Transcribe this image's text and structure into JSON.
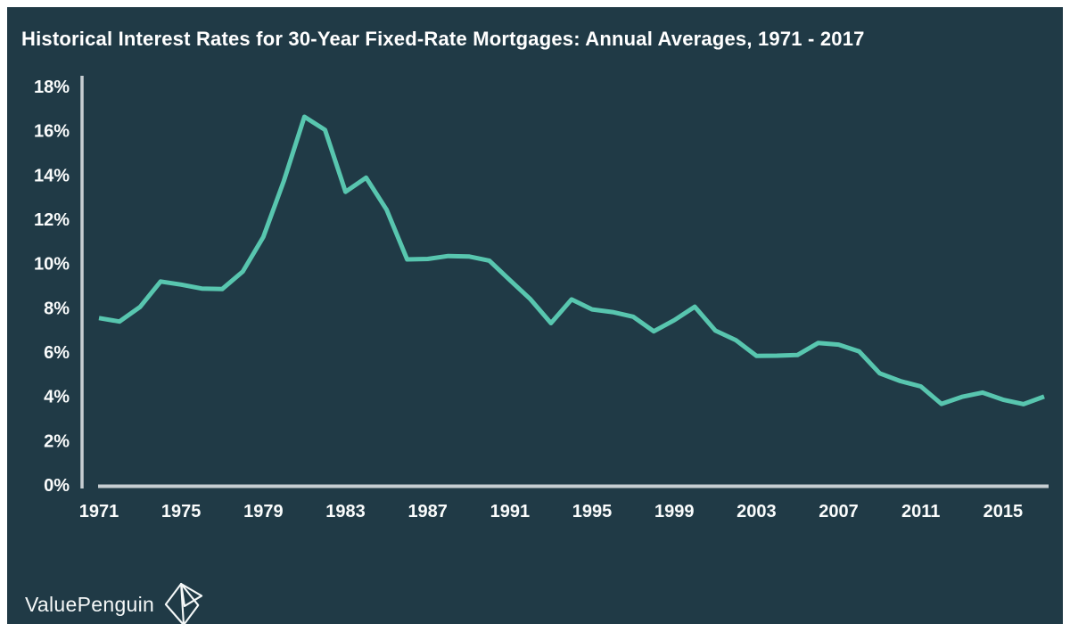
{
  "title": "Historical Interest Rates for 30-Year Fixed-Rate Mortgages: Annual Averages, 1971 - 2017",
  "branding": {
    "name": "ValuePenguin",
    "logo_icon": "origami-penguin-icon"
  },
  "colors": {
    "panel_background": "#203A46",
    "frame": "#FFFFFF",
    "line": "#58C6AF",
    "axis": "#C7CED2",
    "tick_text": "#FAFCFC",
    "title_text": "#FFFFFF"
  },
  "chart_data": {
    "type": "line",
    "title": "Historical Interest Rates for 30-Year Fixed-Rate Mortgages: Annual Averages, 1971 - 2017",
    "x": [
      1971,
      1972,
      1973,
      1974,
      1975,
      1976,
      1977,
      1978,
      1979,
      1980,
      1981,
      1982,
      1983,
      1984,
      1985,
      1986,
      1987,
      1988,
      1989,
      1990,
      1991,
      1992,
      1993,
      1994,
      1995,
      1996,
      1997,
      1998,
      1999,
      2000,
      2001,
      2002,
      2003,
      2004,
      2005,
      2006,
      2007,
      2008,
      2009,
      2010,
      2011,
      2012,
      2013,
      2014,
      2015,
      2016,
      2017
    ],
    "values": [
      7.54,
      7.38,
      8.04,
      9.19,
      9.05,
      8.87,
      8.85,
      9.64,
      11.2,
      13.74,
      16.63,
      16.04,
      13.24,
      13.88,
      12.43,
      10.19,
      10.21,
      10.34,
      10.32,
      10.13,
      9.25,
      8.39,
      7.31,
      8.38,
      7.93,
      7.81,
      7.6,
      6.94,
      7.44,
      8.05,
      6.97,
      6.54,
      5.83,
      5.84,
      5.87,
      6.41,
      6.34,
      6.03,
      5.04,
      4.69,
      4.45,
      3.66,
      3.98,
      4.17,
      3.85,
      3.65,
      3.99
    ],
    "xlabel": "",
    "ylabel": "",
    "ylim": [
      0,
      18
    ],
    "y_tick_values": [
      18,
      16,
      14,
      12,
      10,
      8,
      6,
      4,
      2,
      0
    ],
    "y_tick_labels": [
      "18%",
      "16%",
      "14%",
      "12%",
      "10%",
      "8%",
      "6%",
      "4%",
      "2%",
      "0%"
    ],
    "x_tick_years": [
      1971,
      1975,
      1979,
      1983,
      1987,
      1991,
      1995,
      1999,
      2003,
      2007,
      2011,
      2015
    ],
    "grid": false,
    "legend": false
  }
}
